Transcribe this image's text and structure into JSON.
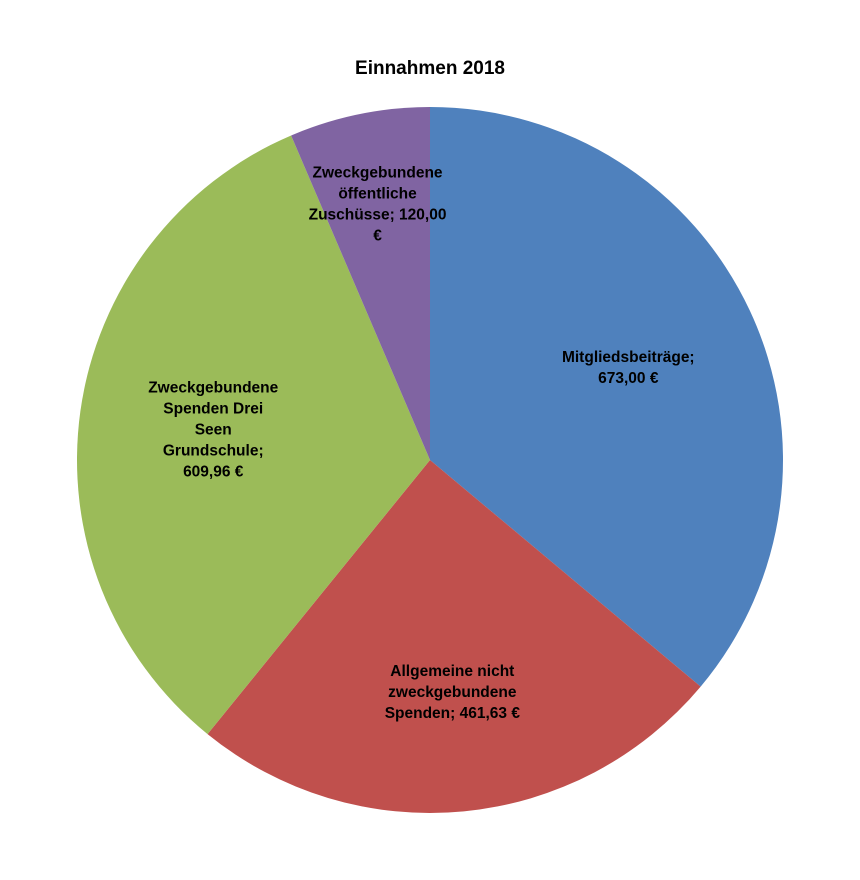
{
  "chart_data": {
    "type": "pie",
    "title": "Einnahmen 2018",
    "unit": "€",
    "slices": [
      {
        "label": "Mitgliedsbeiträge",
        "value": 673.0,
        "value_text": "673,00 €",
        "color": "#4f81bd",
        "label_lines": [
          "Mitgliedsbeiträge;",
          "673,00 €"
        ]
      },
      {
        "label": "Allgemeine nicht zweckgebundene Spenden",
        "value": 461.63,
        "value_text": "461,63 €",
        "color": "#c0504d",
        "label_lines": [
          "Allgemeine nicht",
          "zweckgebundene",
          "Spenden; 461,63 €"
        ]
      },
      {
        "label": "Zweckgebundene Spenden Drei Seen Grundschule",
        "value": 609.96,
        "value_text": "609,96 €",
        "color": "#9bbb59",
        "label_lines": [
          "Zweckgebundene",
          "Spenden Drei",
          "Seen",
          "Grundschule;",
          "609,96 €"
        ]
      },
      {
        "label": "Zweckgebundene öffentliche Zuschüsse",
        "value": 120.0,
        "value_text": "120,00 €",
        "color": "#8064a2",
        "label_lines": [
          "Zweckgebundene",
          "öffentliche",
          "Zuschüsse; 120,00",
          "€"
        ]
      }
    ],
    "start_angle": "12 o'clock",
    "direction": "clockwise",
    "legend": "none"
  }
}
